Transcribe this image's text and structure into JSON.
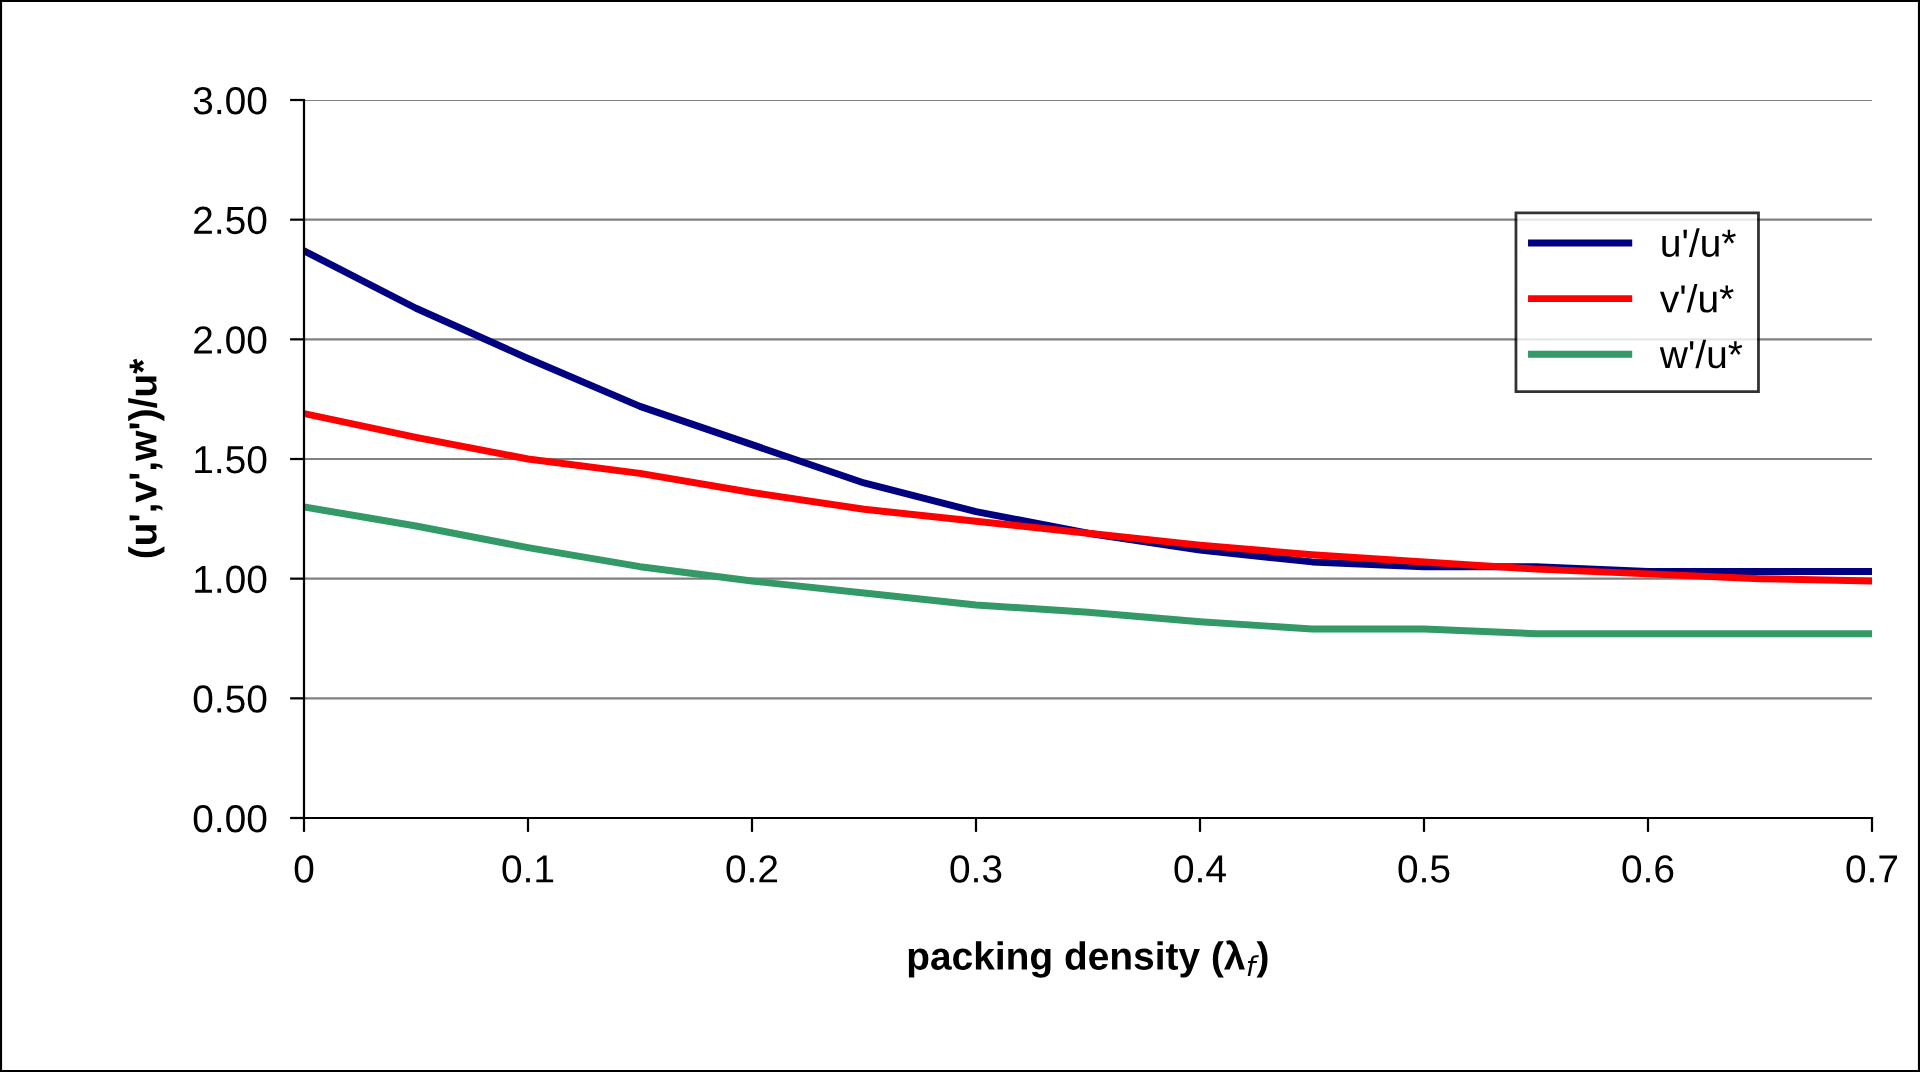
{
  "chart_data": {
    "type": "line",
    "xlabel": "packing density (λ$_{f}$)",
    "ylabel": "(u',v',w')/u*",
    "x": [
      0,
      0.05,
      0.1,
      0.15,
      0.2,
      0.25,
      0.3,
      0.35,
      0.4,
      0.45,
      0.5,
      0.55,
      0.6,
      0.65,
      0.7
    ],
    "series": [
      {
        "name": "u'/u*",
        "color": "#000080",
        "values": [
          2.37,
          2.13,
          1.92,
          1.72,
          1.56,
          1.4,
          1.28,
          1.19,
          1.12,
          1.07,
          1.05,
          1.05,
          1.03,
          1.03,
          1.03
        ]
      },
      {
        "name": "v'/u*",
        "color": "#ff0000",
        "values": [
          1.69,
          1.59,
          1.5,
          1.44,
          1.36,
          1.29,
          1.24,
          1.19,
          1.14,
          1.1,
          1.07,
          1.04,
          1.02,
          1.0,
          0.99
        ]
      },
      {
        "name": "w'/u*",
        "color": "#339966",
        "values": [
          1.3,
          1.22,
          1.13,
          1.05,
          0.99,
          0.94,
          0.89,
          0.86,
          0.82,
          0.79,
          0.79,
          0.77,
          0.77,
          0.77,
          0.77
        ]
      }
    ],
    "xlim": [
      0,
      0.7
    ],
    "xticks": [
      0,
      0.1,
      0.2,
      0.3,
      0.4,
      0.5,
      0.6,
      0.7
    ],
    "ylim": [
      0,
      3
    ],
    "yticks": [
      {
        "value": 0,
        "label": "0.00"
      },
      {
        "value": 0.5,
        "label": "0.50"
      },
      {
        "value": 1,
        "label": "1.00"
      },
      {
        "value": 1.5,
        "label": "1.50"
      },
      {
        "value": 2,
        "label": "2.00"
      },
      {
        "value": 2.5,
        "label": "2.50"
      },
      {
        "value": 3,
        "label": "3.00"
      }
    ],
    "grid": "y",
    "legend": "top right",
    "marker": "none",
    "line_style": "solid"
  }
}
